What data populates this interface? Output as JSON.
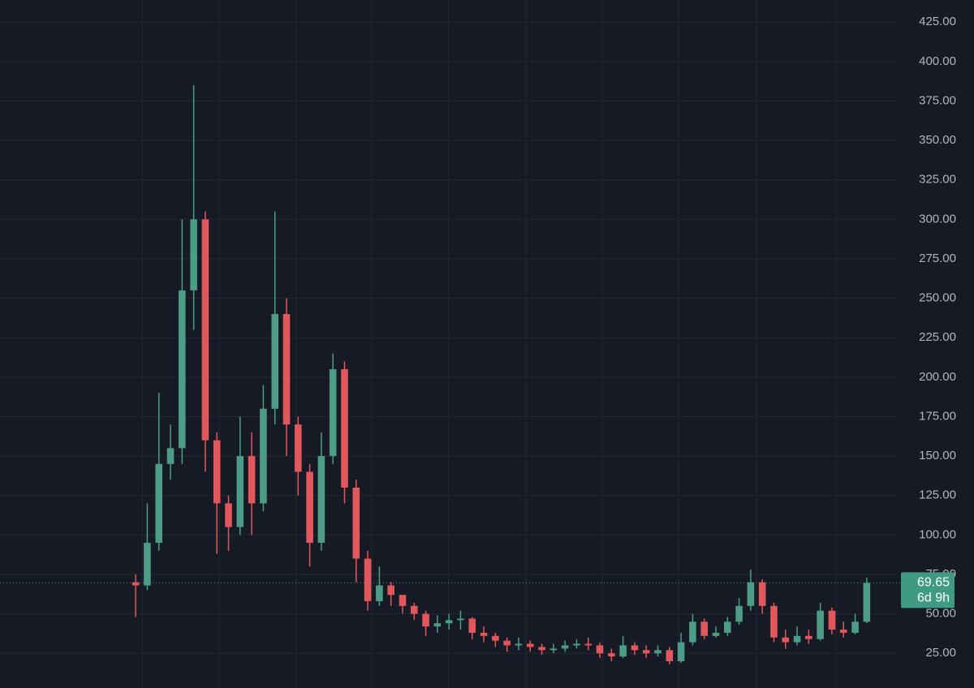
{
  "chart_data": {
    "type": "candlestick",
    "open": [
      70,
      68,
      95,
      145,
      155,
      255,
      300,
      160,
      120,
      105,
      150,
      120,
      180,
      240,
      170,
      140,
      95,
      150,
      205,
      130,
      85,
      58,
      68,
      62,
      55,
      50,
      42,
      44,
      46,
      47,
      38,
      36,
      33,
      30,
      31,
      29,
      27,
      28,
      30,
      31,
      30,
      25,
      23,
      30,
      27,
      25,
      27,
      20,
      32,
      45,
      36,
      38,
      45,
      55,
      70,
      55,
      35,
      32,
      36,
      34,
      52,
      40,
      38,
      45
    ],
    "high": [
      75,
      120,
      190,
      170,
      300,
      385,
      305,
      165,
      125,
      175,
      165,
      195,
      305,
      250,
      175,
      145,
      165,
      215,
      210,
      135,
      90,
      80,
      70,
      62,
      57,
      52,
      49,
      50,
      52,
      48,
      42,
      38,
      35,
      35,
      33,
      31,
      31,
      33,
      34,
      35,
      32,
      28,
      36,
      32,
      30,
      30,
      29,
      38,
      50,
      47,
      42,
      48,
      60,
      78,
      72,
      57,
      40,
      42,
      40,
      57,
      54,
      45,
      50,
      73
    ],
    "low": [
      48,
      65,
      90,
      135,
      145,
      230,
      140,
      88,
      90,
      100,
      100,
      115,
      170,
      150,
      125,
      80,
      90,
      145,
      120,
      70,
      52,
      55,
      55,
      50,
      46,
      36,
      38,
      40,
      40,
      34,
      32,
      29,
      26,
      27,
      26,
      24,
      25,
      26,
      28,
      27,
      22,
      20,
      22,
      24,
      22,
      23,
      18,
      19,
      30,
      34,
      35,
      36,
      43,
      52,
      50,
      32,
      28,
      30,
      31,
      33,
      37,
      35,
      37,
      44
    ],
    "close": [
      68,
      95,
      145,
      155,
      255,
      300,
      160,
      120,
      105,
      150,
      120,
      180,
      240,
      170,
      140,
      95,
      150,
      205,
      130,
      85,
      58,
      68,
      62,
      55,
      50,
      42,
      44,
      46,
      47,
      38,
      36,
      33,
      30,
      31,
      29,
      27,
      28,
      30,
      31,
      30,
      25,
      23,
      30,
      27,
      25,
      27,
      20,
      32,
      45,
      36,
      38,
      45,
      55,
      70,
      55,
      35,
      32,
      36,
      34,
      52,
      40,
      38,
      45,
      69.65
    ],
    "up_color": "#4c9c87",
    "down_color": "#e2575b",
    "ylim": [
      3,
      439
    ],
    "yticks": [
      {
        "value": 25,
        "label": "25.00"
      },
      {
        "value": 50,
        "label": "50.00"
      },
      {
        "value": 75,
        "label": "75.00"
      },
      {
        "value": 100,
        "label": "100.00"
      },
      {
        "value": 125,
        "label": "125.00"
      },
      {
        "value": 150,
        "label": "150.00"
      },
      {
        "value": 175,
        "label": "175.00"
      },
      {
        "value": 200,
        "label": "200.00"
      },
      {
        "value": 225,
        "label": "225.00"
      },
      {
        "value": 250,
        "label": "250.00"
      },
      {
        "value": 275,
        "label": "275.00"
      },
      {
        "value": 300,
        "label": "300.00"
      },
      {
        "value": 325,
        "label": "325.00"
      },
      {
        "value": 350,
        "label": "350.00"
      },
      {
        "value": 375,
        "label": "375.00"
      },
      {
        "value": 400,
        "label": "400.00"
      },
      {
        "value": 425,
        "label": "425.00"
      }
    ],
    "grid": true,
    "last_price": 69.65,
    "countdown": "6d 9h"
  }
}
